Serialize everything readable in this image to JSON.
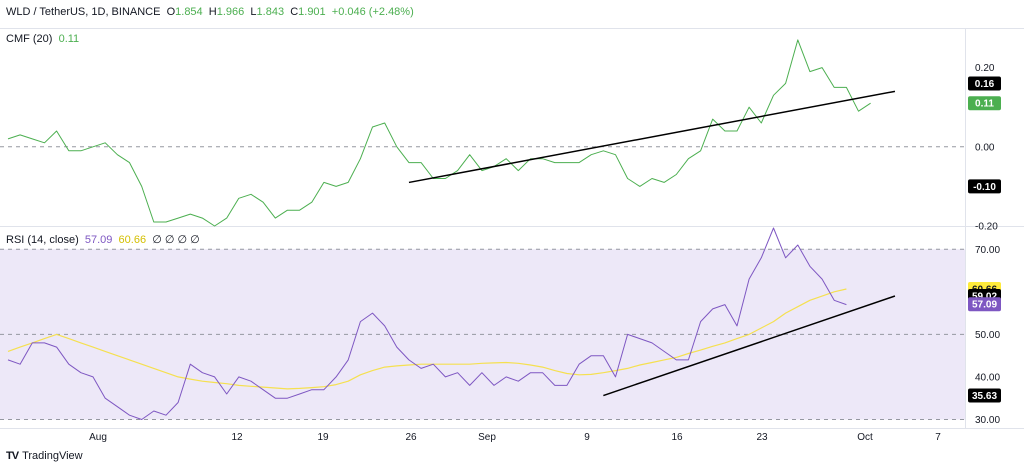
{
  "header": {
    "symbol": "WLD / TetherUS, 1D, BINANCE",
    "o_label": "O",
    "o_value": "1.854",
    "h_label": "H",
    "h_value": "1.966",
    "l_label": "L",
    "l_value": "1.843",
    "c_label": "C",
    "c_value": "1.901",
    "change": "+0.046 (+2.48%)"
  },
  "cmf_header": {
    "label": "CMF (20)",
    "value": "0.11"
  },
  "rsi_header": {
    "label": "RSI (14, close)",
    "rsi_value": "57.09",
    "ma_value": "60.66",
    "extras": "∅ ∅ ∅ ∅"
  },
  "watermark": {
    "text": "TradingView"
  },
  "colors": {
    "cmf_line": "#4caf50",
    "rsi_line": "#7e57c2",
    "rsi_ma": "#f5e050",
    "rsi_band": "#ede8f8",
    "trendline": "#000000",
    "dashed": "#9598a1"
  },
  "chart_data": [
    {
      "type": "line",
      "name": "CMF (20)",
      "x_ticks": [
        "Aug",
        "12",
        "19",
        "26",
        "Sep",
        "9",
        "16",
        "23",
        "Oct",
        "7"
      ],
      "ylim": [
        -0.2,
        0.3
      ],
      "y_ticks": [
        0.2,
        0.0,
        -0.2
      ],
      "y_tick_labels": [
        "0.20",
        "0.00",
        "-0.20"
      ],
      "values": [
        0.02,
        0.03,
        0.02,
        0.01,
        0.04,
        -0.01,
        -0.01,
        0.0,
        0.01,
        -0.02,
        -0.04,
        -0.1,
        -0.19,
        -0.19,
        -0.18,
        -0.17,
        -0.18,
        -0.2,
        -0.18,
        -0.13,
        -0.12,
        -0.14,
        -0.18,
        -0.16,
        -0.16,
        -0.14,
        -0.09,
        -0.1,
        -0.09,
        -0.03,
        0.05,
        0.06,
        0.0,
        -0.04,
        -0.04,
        -0.08,
        -0.08,
        -0.06,
        -0.02,
        -0.06,
        -0.05,
        -0.03,
        -0.06,
        -0.03,
        -0.03,
        -0.04,
        -0.04,
        -0.04,
        -0.02,
        -0.01,
        -0.02,
        -0.08,
        -0.1,
        -0.08,
        -0.09,
        -0.07,
        -0.03,
        -0.01,
        0.07,
        0.04,
        0.04,
        0.1,
        0.06,
        0.13,
        0.16,
        0.27,
        0.19,
        0.2,
        0.15,
        0.15,
        0.09,
        0.11
      ],
      "trendline": {
        "from": [
          33,
          -0.09
        ],
        "to": [
          73,
          0.14
        ]
      },
      "badges": [
        {
          "text": "0.16",
          "value": 0.16,
          "bg": "#000000",
          "fg": "#ffffff"
        },
        {
          "text": "0.11",
          "value": 0.11,
          "bg": "#4caf50",
          "fg": "#ffffff"
        },
        {
          "text": "-0.10",
          "value": -0.1,
          "bg": "#000000",
          "fg": "#ffffff"
        }
      ]
    },
    {
      "type": "line",
      "name": "RSI (14, close)",
      "ylim": [
        28,
        75
      ],
      "y_ticks": [
        70,
        50,
        40,
        30
      ],
      "y_tick_labels": [
        "70.00",
        "50.00",
        "40.00",
        "30.00"
      ],
      "band": [
        30,
        70
      ],
      "series": [
        {
          "name": "RSI",
          "values": [
            44,
            43,
            48,
            48,
            47,
            43,
            41,
            40,
            35,
            33,
            31,
            30,
            32,
            31,
            34,
            43,
            41,
            40,
            36,
            40,
            39,
            37,
            35,
            35,
            36,
            37,
            37,
            40,
            44,
            53,
            55,
            52,
            47,
            44,
            42,
            43,
            40,
            41,
            38,
            41,
            38,
            40,
            39,
            41,
            41,
            38,
            38,
            43,
            45,
            45,
            40,
            50,
            49,
            48,
            46,
            44,
            44,
            53,
            56,
            57,
            52,
            63,
            68,
            75,
            68,
            71,
            66,
            63,
            58,
            57
          ]
        },
        {
          "name": "MA",
          "values": [
            46,
            47,
            48,
            49,
            50,
            49,
            48,
            47,
            46,
            45,
            44,
            43,
            42,
            41,
            40,
            39.5,
            39,
            38.7,
            38.4,
            38,
            37.8,
            37.6,
            37.4,
            37.2,
            37.3,
            37.5,
            37.7,
            38.2,
            39,
            40.5,
            41.5,
            42.3,
            42.6,
            42.8,
            43,
            43,
            43,
            43,
            43,
            43.2,
            43.3,
            43.4,
            43.2,
            42.8,
            42.3,
            41.5,
            40.8,
            40.5,
            40.6,
            41,
            41.5,
            42,
            42.8,
            43.4,
            44,
            44.6,
            45.5,
            46.3,
            47.2,
            48,
            49,
            50,
            51.5,
            53,
            55,
            56.5,
            58,
            59,
            60,
            60.66
          ]
        }
      ],
      "trendline": {
        "from": [
          49,
          35.63
        ],
        "to": [
          73,
          59.02
        ]
      },
      "badges": [
        {
          "text": "60.66",
          "value": 60.66,
          "bg": "#ffeb3b",
          "fg": "#131722"
        },
        {
          "text": "59.02",
          "value": 59.02,
          "bg": "#000000",
          "fg": "#ffffff"
        },
        {
          "text": "57.09",
          "value": 57.09,
          "bg": "#7e57c2",
          "fg": "#ffffff"
        },
        {
          "text": "35.63",
          "value": 35.63,
          "bg": "#000000",
          "fg": "#ffffff"
        }
      ]
    }
  ]
}
